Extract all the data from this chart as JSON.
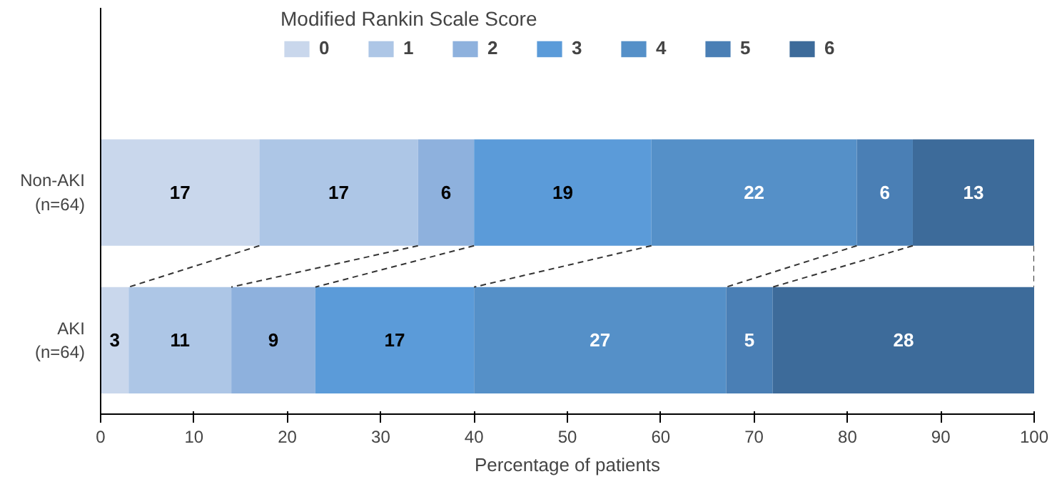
{
  "chart_data": {
    "type": "bar",
    "orientation": "horizontal",
    "stacked": true,
    "legend_title": "Modified Rankin Scale Score",
    "xlabel": "Percentage of patients",
    "categories": [
      "Non-AKI\n(n=64)",
      "AKI\n(n=64)"
    ],
    "series": [
      {
        "name": "0",
        "color": "#c9d7ec",
        "values": [
          17,
          3
        ]
      },
      {
        "name": "1",
        "color": "#adc6e6",
        "values": [
          17,
          11
        ]
      },
      {
        "name": "2",
        "color": "#8eb1dd",
        "values": [
          6,
          9
        ]
      },
      {
        "name": "3",
        "color": "#5b9bd9",
        "values": [
          19,
          17
        ]
      },
      {
        "name": "4",
        "color": "#5590c8",
        "values": [
          22,
          27
        ]
      },
      {
        "name": "5",
        "color": "#4a7fb5",
        "values": [
          6,
          5
        ]
      },
      {
        "name": "6",
        "color": "#3d6b9a",
        "values": [
          13,
          28
        ]
      }
    ],
    "xlim": [
      0,
      100
    ],
    "xticks": [
      0,
      10,
      20,
      30,
      40,
      50,
      60,
      70,
      80,
      90,
      100
    ],
    "data_labels": true,
    "legend": "top",
    "grid": false
  }
}
